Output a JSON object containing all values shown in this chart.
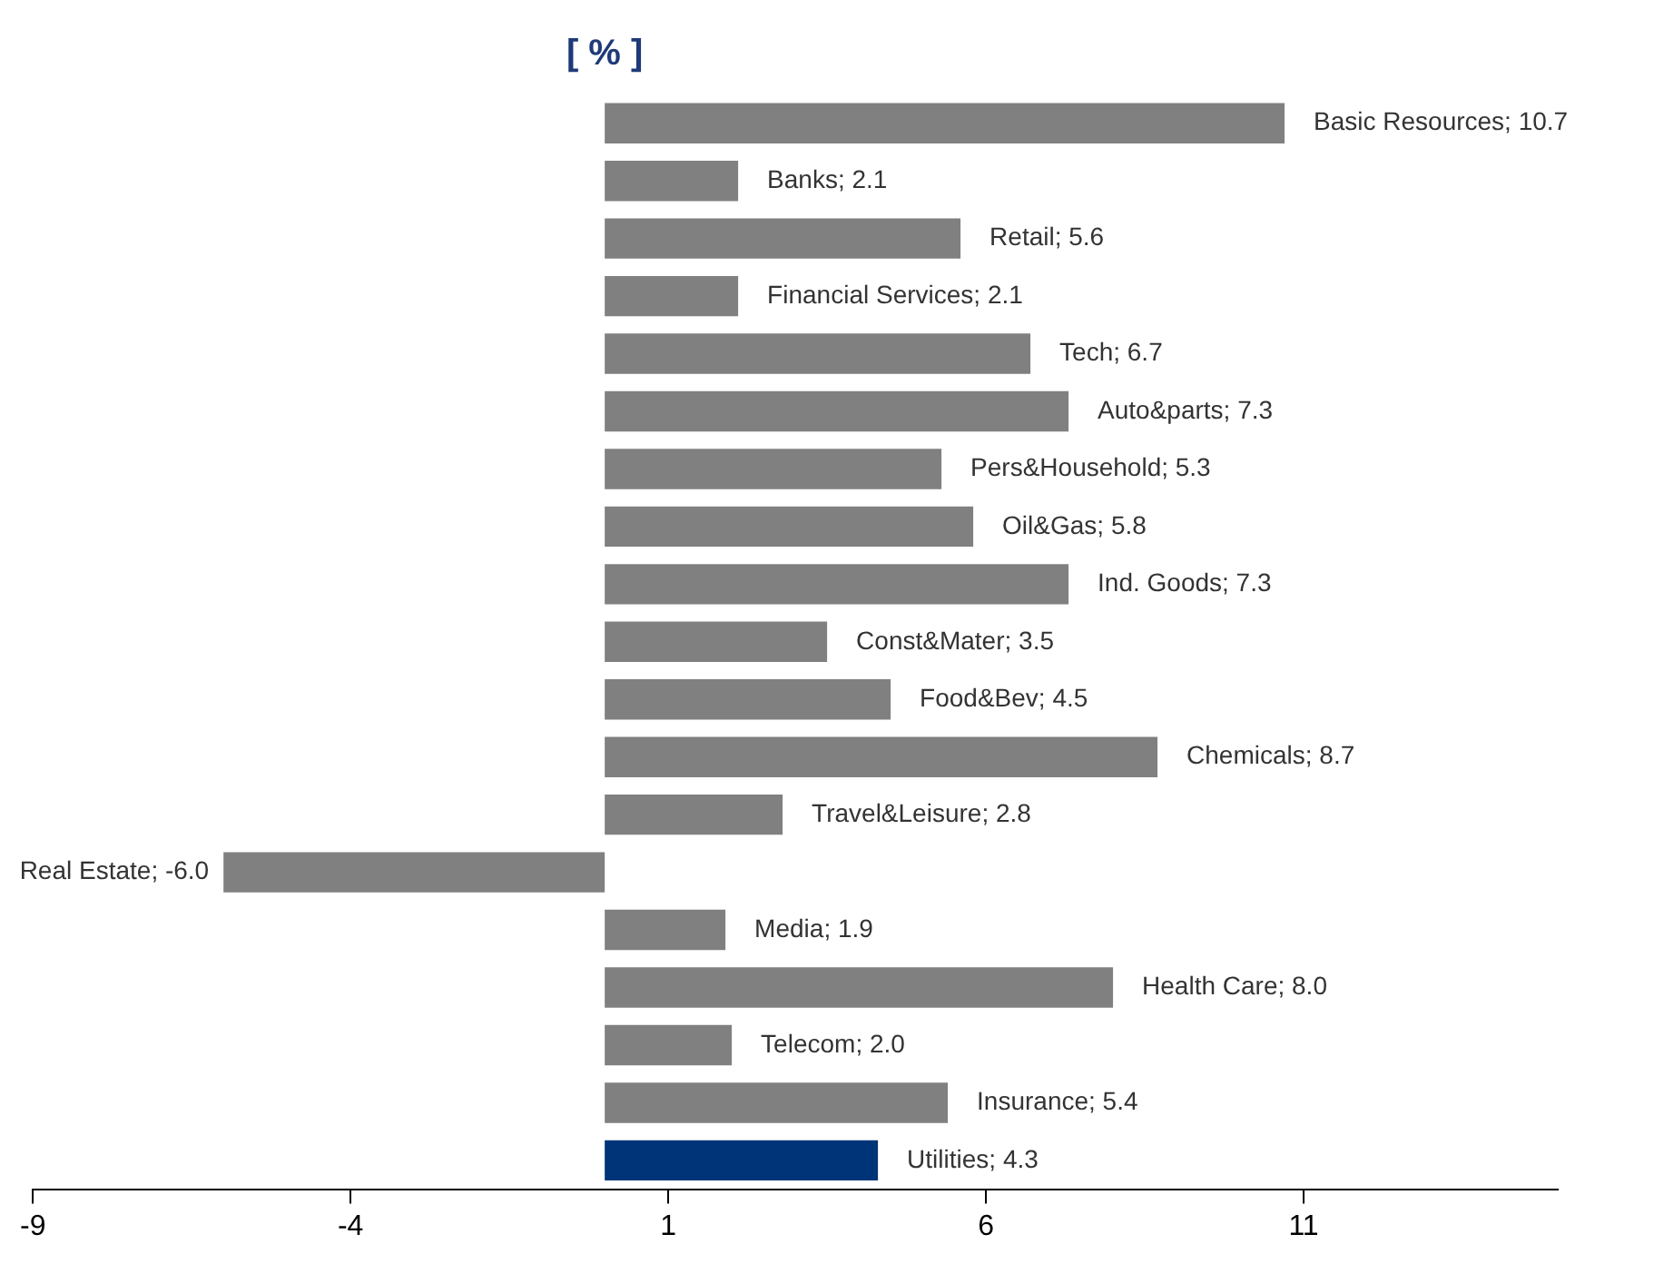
{
  "chart_data": {
    "type": "bar",
    "orientation": "horizontal",
    "title": "[ % ]",
    "categories": [
      "Basic Resources; 10.7",
      "Banks; 2.1",
      "Retail; 5.6",
      "Financial Services; 2.1",
      "Tech; 6.7",
      "Auto&parts; 7.3",
      "Pers&Household; 5.3",
      "Oil&Gas; 5.8",
      "Ind. Goods; 7.3",
      "Const&Mater; 3.5",
      "Food&Bev; 4.5",
      "Chemicals; 8.7",
      "Travel&Leisure; 2.8",
      "Real Estate; -6.0",
      "Media; 1.9",
      "Health Care; 8.0",
      "Telecom; 2.0",
      "Insurance; 5.4",
      "Utilities; 4.3"
    ],
    "values": [
      10.7,
      2.1,
      5.6,
      2.1,
      6.7,
      7.3,
      5.3,
      5.8,
      7.3,
      3.5,
      4.5,
      8.7,
      2.8,
      -6.0,
      1.9,
      8.0,
      2.0,
      5.4,
      4.3
    ],
    "colors": [
      "#808080",
      "#808080",
      "#808080",
      "#808080",
      "#808080",
      "#808080",
      "#808080",
      "#808080",
      "#808080",
      "#808080",
      "#808080",
      "#808080",
      "#808080",
      "#808080",
      "#808080",
      "#808080",
      "#808080",
      "#808080",
      "#003478"
    ],
    "xlim": [
      -9,
      15
    ],
    "xticks": [
      -9,
      -4,
      1,
      6,
      11
    ],
    "tick_labels": "x",
    "grid": false,
    "legend": false
  }
}
